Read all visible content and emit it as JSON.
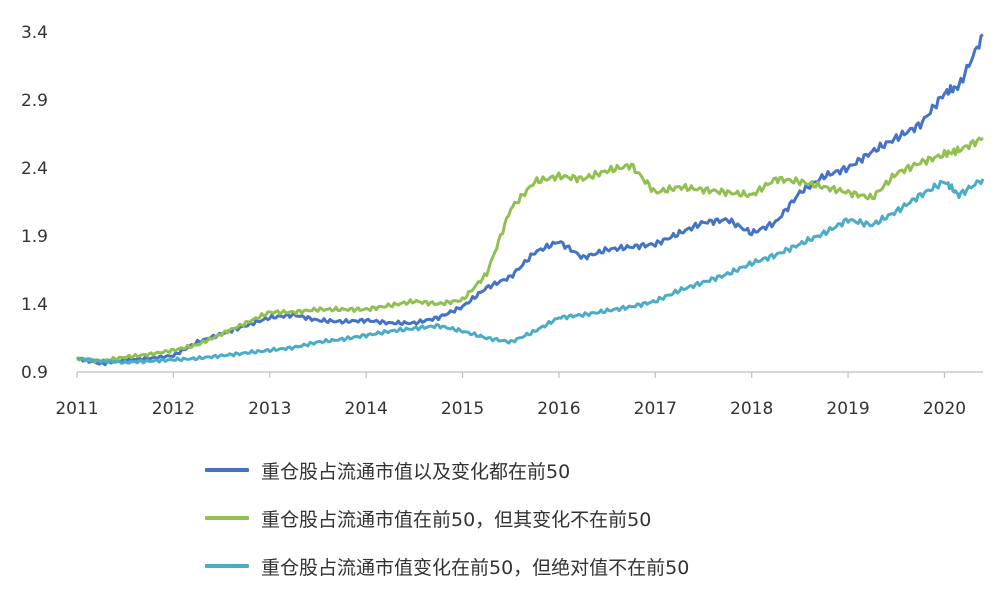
{
  "chart_data": {
    "type": "line",
    "title": "",
    "xlabel": "",
    "ylabel": "",
    "x_ticks": [
      "2011",
      "2012",
      "2013",
      "2014",
      "2015",
      "2016",
      "2017",
      "2018",
      "2019",
      "2020"
    ],
    "y_ticks": [
      "0.9",
      "1.4",
      "1.9",
      "2.4",
      "2.9",
      "3.4"
    ],
    "xlim": [
      2011.0,
      2020.4
    ],
    "ylim": [
      0.9,
      3.4
    ],
    "grid": false,
    "legend_position": "bottom",
    "x": [
      2011.0,
      2011.25,
      2011.5,
      2011.75,
      2012.0,
      2012.25,
      2012.5,
      2012.75,
      2013.0,
      2013.25,
      2013.5,
      2013.75,
      2014.0,
      2014.25,
      2014.5,
      2014.75,
      2015.0,
      2015.25,
      2015.5,
      2015.75,
      2016.0,
      2016.25,
      2016.5,
      2016.75,
      2017.0,
      2017.25,
      2017.5,
      2017.75,
      2018.0,
      2018.25,
      2018.5,
      2018.75,
      2019.0,
      2019.25,
      2019.5,
      2019.75,
      2020.0,
      2020.15,
      2020.4
    ],
    "series": [
      {
        "name": "重仓股占流通市值以及变化都在前50",
        "color": "#4472c4",
        "values": [
          1.0,
          0.96,
          0.99,
          1.0,
          1.02,
          1.12,
          1.18,
          1.24,
          1.3,
          1.32,
          1.28,
          1.27,
          1.28,
          1.26,
          1.26,
          1.3,
          1.38,
          1.52,
          1.6,
          1.78,
          1.86,
          1.74,
          1.8,
          1.82,
          1.84,
          1.92,
          2.0,
          2.02,
          1.92,
          2.0,
          2.22,
          2.34,
          2.4,
          2.52,
          2.62,
          2.72,
          2.95,
          3.0,
          3.38
        ]
      },
      {
        "name": "重仓股占流通市值在前50，但其变化不在前50",
        "color": "#92c050",
        "values": [
          1.0,
          0.98,
          1.01,
          1.03,
          1.06,
          1.1,
          1.18,
          1.26,
          1.34,
          1.34,
          1.36,
          1.36,
          1.36,
          1.39,
          1.42,
          1.4,
          1.43,
          1.62,
          2.1,
          2.3,
          2.34,
          2.32,
          2.38,
          2.42,
          2.22,
          2.26,
          2.24,
          2.22,
          2.2,
          2.32,
          2.3,
          2.26,
          2.22,
          2.18,
          2.36,
          2.44,
          2.5,
          2.53,
          2.62
        ]
      },
      {
        "name": "重仓股占流通市值变化在前50，但绝对值不在前50",
        "color": "#4bacc6",
        "values": [
          1.0,
          0.98,
          0.97,
          0.98,
          0.99,
          1.0,
          1.02,
          1.04,
          1.06,
          1.08,
          1.12,
          1.14,
          1.17,
          1.2,
          1.22,
          1.24,
          1.2,
          1.15,
          1.12,
          1.2,
          1.3,
          1.32,
          1.35,
          1.38,
          1.42,
          1.5,
          1.56,
          1.62,
          1.7,
          1.76,
          1.84,
          1.92,
          2.02,
          1.98,
          2.08,
          2.2,
          2.3,
          2.2,
          2.32
        ]
      }
    ]
  }
}
